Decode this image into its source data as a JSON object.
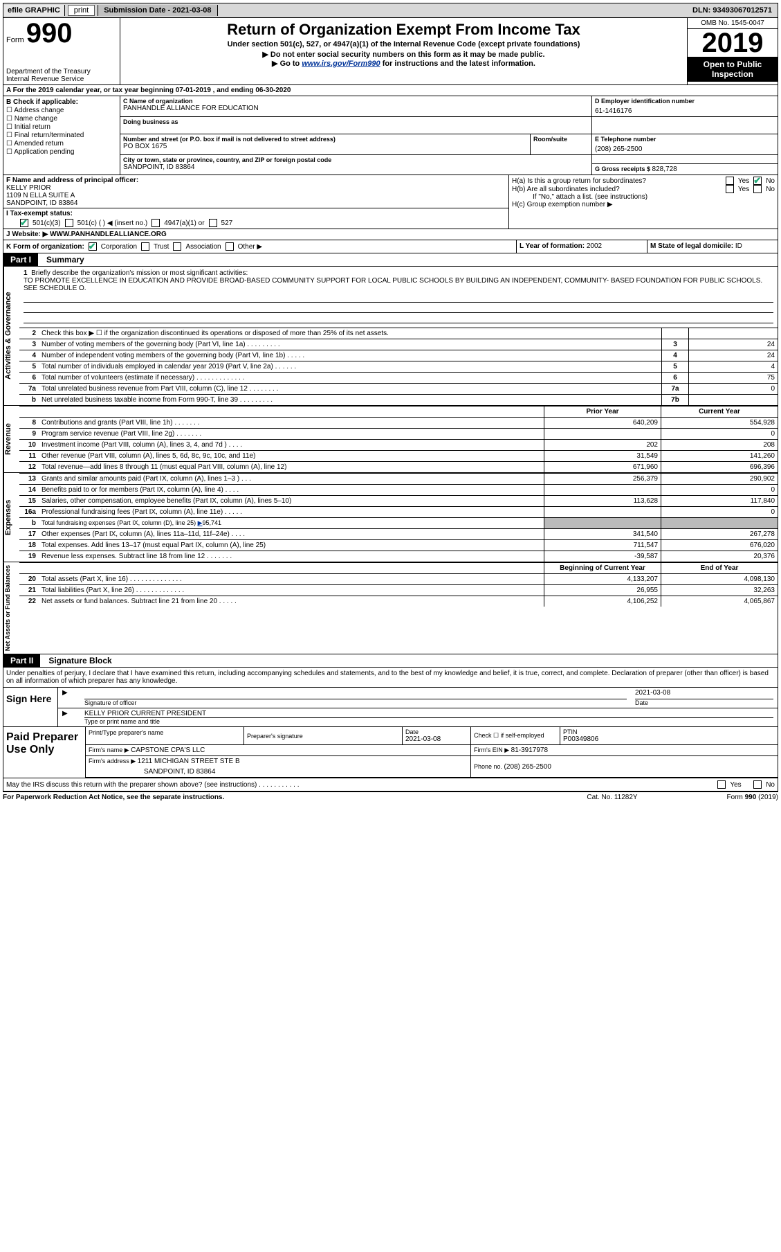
{
  "topbar": {
    "efile": "efile GRAPHIC",
    "print": "print",
    "sub_label": "Submission Date - ",
    "sub_date": "2021-03-08",
    "dln_label": "DLN: ",
    "dln": "93493067012571"
  },
  "header": {
    "form_word": "Form",
    "form_no": "990",
    "dept": "Department of the Treasury\nInternal Revenue Service",
    "title": "Return of Organization Exempt From Income Tax",
    "sub1": "Under section 501(c), 527, or 4947(a)(1) of the Internal Revenue Code (except private foundations)",
    "sub2": "▶ Do not enter social security numbers on this form as it may be made public.",
    "sub3_pre": "▶ Go to ",
    "sub3_link": "www.irs.gov/Form990",
    "sub3_post": " for instructions and the latest information.",
    "omb": "OMB No. 1545-0047",
    "year": "2019",
    "open": "Open to Public Inspection"
  },
  "lineA": "A For the 2019 calendar year, or tax year beginning 07-01-2019     , and ending 06-30-2020",
  "colB": {
    "title": "B Check if applicable:",
    "items": [
      "Address change",
      "Name change",
      "Initial return",
      "Final return/terminated",
      "Amended return",
      "Application pending"
    ]
  },
  "org": {
    "c_lbl": "C Name of organization",
    "c_val": "PANHANDLE ALLIANCE FOR EDUCATION",
    "dba_lbl": "Doing business as",
    "addr_lbl": "Number and street (or P.O. box if mail is not delivered to street address)",
    "addr_val": "PO BOX 1675",
    "room_lbl": "Room/suite",
    "city_lbl": "City or town, state or province, country, and ZIP or foreign postal code",
    "city_val": "SANDPOINT, ID  83864"
  },
  "colD": {
    "ein_lbl": "D Employer identification number",
    "ein": "61-1416176",
    "tel_lbl": "E Telephone number",
    "tel": "(208) 265-2500",
    "g_lbl": "G Gross receipts $ ",
    "g_val": "828,728"
  },
  "rowF": {
    "lbl": "F  Name and address of principal officer:",
    "name": "KELLY PRIOR",
    "addr1": "1109 N ELLA SUITE A",
    "addr2": "SANDPOINT, ID  83864"
  },
  "rowH": {
    "a": "H(a)  Is this a group return for subordinates?",
    "b": "H(b)  Are all subordinates included?",
    "b_note": "If \"No,\" attach a list. (see instructions)",
    "c": "H(c)  Group exemption number ▶",
    "yes": "Yes",
    "no": "No"
  },
  "rowI": {
    "lbl": "I  Tax-exempt status:",
    "o1": "501(c)(3)",
    "o2": "501(c) (  ) ◀ (insert no.)",
    "o3": "4947(a)(1) or",
    "o4": "527"
  },
  "rowJ": {
    "lbl": "J  Website: ▶ ",
    "url": "WWW.PANHANDLEALLIANCE.ORG"
  },
  "rowK": {
    "k": "K Form of organization:",
    "opts": [
      "Corporation",
      "Trust",
      "Association",
      "Other ▶"
    ],
    "l_lbl": "L Year of formation: ",
    "l_val": "2002",
    "m_lbl": "M State of legal domicile: ",
    "m_val": "ID"
  },
  "parts": {
    "p1": "Part I",
    "p1_title": "Summary",
    "p2": "Part II",
    "p2_title": "Signature Block"
  },
  "sections": {
    "gov": "Activities & Governance",
    "rev": "Revenue",
    "exp": "Expenses",
    "net": "Net Assets or Fund Balances"
  },
  "mission": {
    "no": "1",
    "lbl": "Briefly describe the organization's mission or most significant activities:",
    "text": "TO PROMOTE EXCELLENCE IN EDUCATION AND PROVIDE BROAD-BASED COMMUNITY SUPPORT FOR LOCAL PUBLIC SCHOOLS BY BUILDING AN INDEPENDENT, COMMUNITY- BASED FOUNDATION FOR PUBLIC SCHOOLS. SEE SCHEDULE O."
  },
  "gov_rows": [
    {
      "no": "2",
      "desc": "Check this box ▶ ☐  if the organization discontinued its operations or disposed of more than 25% of its net assets.",
      "bx": "",
      "val": ""
    },
    {
      "no": "3",
      "desc": "Number of voting members of the governing body (Part VI, line 1a)   .    .    .    .    .    .    .    .    .",
      "bx": "3",
      "val": "24"
    },
    {
      "no": "4",
      "desc": "Number of independent voting members of the governing body (Part VI, line 1b)  .    .    .    .    .",
      "bx": "4",
      "val": "24"
    },
    {
      "no": "5",
      "desc": "Total number of individuals employed in calendar year 2019 (Part V, line 2a)  .    .    .    .    .    .",
      "bx": "5",
      "val": "4"
    },
    {
      "no": "6",
      "desc": "Total number of volunteers (estimate if necessary)    .    .    .    .    .    .    .    .    .    .    .    .    .",
      "bx": "6",
      "val": "75"
    },
    {
      "no": "7a",
      "desc": "Total unrelated business revenue from Part VIII, column (C), line 12  .    .    .    .    .    .    .    .",
      "bx": "7a",
      "val": "0"
    },
    {
      "no": "b",
      "desc": "Net unrelated business taxable income from Form 990-T, line 39   .    .    .    .    .    .    .    .    .",
      "bx": "7b",
      "val": ""
    }
  ],
  "pycy_hdr": {
    "py": "Prior Year",
    "cy": "Current Year"
  },
  "rev_rows": [
    {
      "no": "8",
      "desc": "Contributions and grants (Part VIII, line 1h)   .    .    .    .    .    .    .",
      "py": "640,209",
      "cy": "554,928"
    },
    {
      "no": "9",
      "desc": "Program service revenue (Part VIII, line 2g)   .    .    .    .    .    .    .",
      "py": "",
      "cy": "0"
    },
    {
      "no": "10",
      "desc": "Investment income (Part VIII, column (A), lines 3, 4, and 7d )    .    .    .    .",
      "py": "202",
      "cy": "208"
    },
    {
      "no": "11",
      "desc": "Other revenue (Part VIII, column (A), lines 5, 6d, 8c, 9c, 10c, and 11e)",
      "py": "31,549",
      "cy": "141,260"
    },
    {
      "no": "12",
      "desc": "Total revenue—add lines 8 through 11 (must equal Part VIII, column (A), line 12)",
      "py": "671,960",
      "cy": "696,396"
    }
  ],
  "exp_rows": [
    {
      "no": "13",
      "desc": "Grants and similar amounts paid (Part IX, column (A), lines 1–3 )   .    .    .",
      "py": "256,379",
      "cy": "290,902"
    },
    {
      "no": "14",
      "desc": "Benefits paid to or for members (Part IX, column (A), line 4)   .    .    .    .",
      "py": "",
      "cy": "0"
    },
    {
      "no": "15",
      "desc": "Salaries, other compensation, employee benefits (Part IX, column (A), lines 5–10)",
      "py": "113,628",
      "cy": "117,840"
    },
    {
      "no": "16a",
      "desc": "Professional fundraising fees (Part IX, column (A), line 11e)   .    .    .    .    .",
      "py": "",
      "cy": "0"
    },
    {
      "no": "b",
      "desc": "Total fundraising expenses (Part IX, column (D), line 25) ▶95,741",
      "py": "grey",
      "cy": "grey"
    },
    {
      "no": "17",
      "desc": "Other expenses (Part IX, column (A), lines 11a–11d, 11f–24e)    .    .    .    .",
      "py": "341,540",
      "cy": "267,278"
    },
    {
      "no": "18",
      "desc": "Total expenses. Add lines 13–17 (must equal Part IX, column (A), line 25)",
      "py": "711,547",
      "cy": "676,020"
    },
    {
      "no": "19",
      "desc": "Revenue less expenses. Subtract line 18 from line 12  .    .    .    .    .    .    .",
      "py": "-39,587",
      "cy": "20,376"
    }
  ],
  "net_hdr": {
    "py": "Beginning of Current Year",
    "cy": "End of Year"
  },
  "net_rows": [
    {
      "no": "20",
      "desc": "Total assets (Part X, line 16)  .    .    .    .    .    .    .    .    .    .    .    .    .    .",
      "py": "4,133,207",
      "cy": "4,098,130"
    },
    {
      "no": "21",
      "desc": "Total liabilities (Part X, line 26)   .    .    .    .    .    .    .    .    .    .    .    .    .",
      "py": "26,955",
      "cy": "32,263"
    },
    {
      "no": "22",
      "desc": "Net assets or fund balances. Subtract line 21 from line 20   .    .    .    .    .",
      "py": "4,106,252",
      "cy": "4,065,867"
    }
  ],
  "decl": "Under penalties of perjury, I declare that I have examined this return, including accompanying schedules and statements, and to the best of my knowledge and belief, it is true, correct, and complete. Declaration of preparer (other than officer) is based on all information of which preparer has any knowledge.",
  "sign": {
    "here": "Sign Here",
    "sig_lbl": "Signature of officer",
    "date_lbl": "Date",
    "date": "2021-03-08",
    "name": "KELLY PRIOR  CURRENT PRESIDENT",
    "type_lbl": "Type or print name and title"
  },
  "prep": {
    "title": "Paid Preparer Use Only",
    "r1c1_lbl": "Print/Type preparer's name",
    "r1c2_lbl": "Preparer's signature",
    "r1c3_lbl": "Date",
    "r1c3_val": "2021-03-08",
    "r1c4_lbl": "Check ☐ if self-employed",
    "r1c5_lbl": "PTIN",
    "r1c5_val": "P00349806",
    "r2c1_lbl": "Firm's name    ▶ ",
    "r2c1_val": "CAPSTONE CPA'S LLC",
    "r2c2_lbl": "Firm's EIN ▶ ",
    "r2c2_val": "81-3917978",
    "r3c1_lbl": "Firm's address ▶ ",
    "r3c1_val": "1211 MICHIGAN STREET STE B",
    "r3c1_val2": "SANDPOINT, ID  83864",
    "r3c2_lbl": "Phone no. ",
    "r3c2_val": "(208) 265-2500"
  },
  "discuss": {
    "q": "May the IRS discuss this return with the preparer shown above? (see instructions)    .    .    .    .    .    .    .    .    .    .    .",
    "yes": "Yes",
    "no": "No"
  },
  "footer": {
    "l": "For Paperwork Reduction Act Notice, see the separate instructions.",
    "c": "Cat. No. 11282Y",
    "r": "Form 990 (2019)"
  }
}
